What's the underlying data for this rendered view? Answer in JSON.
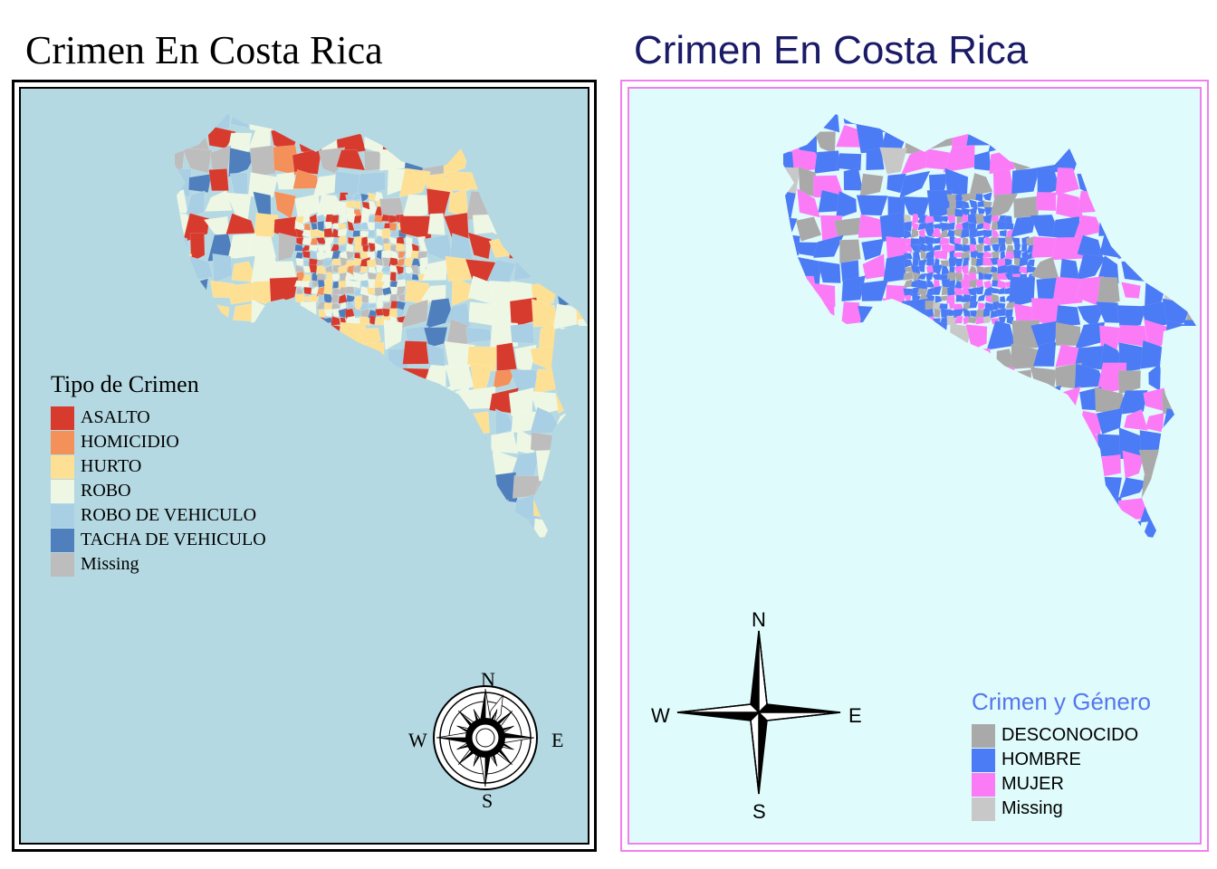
{
  "left_panel": {
    "title": "Crimen En Costa Rica",
    "legend_title": "Tipo de Crimen",
    "legend": [
      {
        "label": "ASALTO",
        "color": "#d73b2e"
      },
      {
        "label": "HOMICIDIO",
        "color": "#f4905a"
      },
      {
        "label": "HURTO",
        "color": "#fde093"
      },
      {
        "label": "ROBO",
        "color": "#eef7e4"
      },
      {
        "label": "ROBO DE VEHICULO",
        "color": "#a8cfe3"
      },
      {
        "label": "TACHA DE VEHICULO",
        "color": "#4f7fbd"
      },
      {
        "label": "Missing",
        "color": "#bdbdbd"
      }
    ],
    "compass": {
      "n": "N",
      "s": "S",
      "e": "E",
      "w": "W"
    },
    "frame_color": "#000000",
    "sea_color": "#b5d9e2"
  },
  "right_panel": {
    "title": "Crimen En Costa Rica",
    "legend_title": "Crimen y Género",
    "legend": [
      {
        "label": "DESCONOCIDO",
        "color": "#a9a9a9"
      },
      {
        "label": "HOMBRE",
        "color": "#4b7bf5"
      },
      {
        "label": "MUJER",
        "color": "#fb7bf7"
      },
      {
        "label": "Missing",
        "color": "#c8c8c8"
      }
    ],
    "compass": {
      "n": "N",
      "s": "S",
      "e": "E",
      "w": "W"
    },
    "frame_color": "#f080f0",
    "sea_color": "#dffbfc"
  }
}
